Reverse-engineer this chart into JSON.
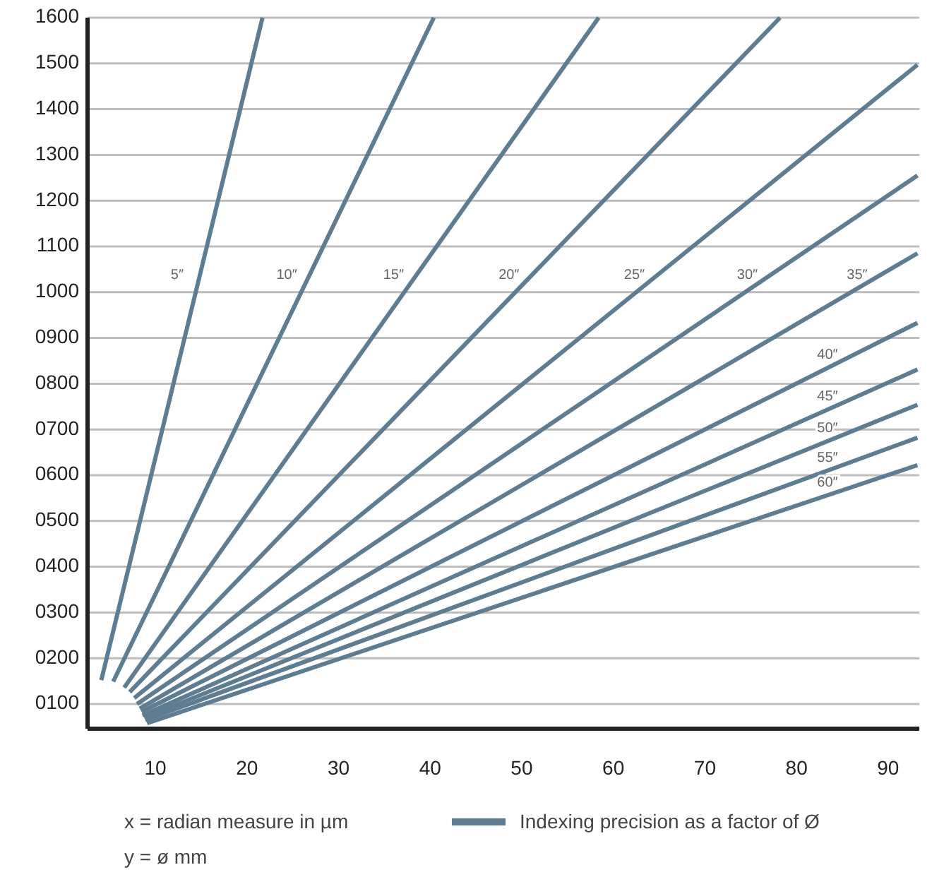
{
  "chart_data": {
    "type": "line",
    "xlabel": "x = radian measure in µm",
    "legend_title": "Indexing precision as a factor of Ø",
    "grid": "y",
    "marker": "none",
    "line_style": "solid",
    "xlim": [
      2.6,
      93.4
    ],
    "ylim": [
      46,
      1600
    ],
    "xticks": [
      10,
      20,
      30,
      40,
      50,
      60,
      70,
      80,
      90
    ],
    "yticks": [
      {
        "value": 100,
        "label": "0100"
      },
      {
        "value": 200,
        "label": "0200"
      },
      {
        "value": 300,
        "label": "0300"
      },
      {
        "value": 400,
        "label": "0400"
      },
      {
        "value": 500,
        "label": "0500"
      },
      {
        "value": 600,
        "label": "0600"
      },
      {
        "value": 700,
        "label": "0700"
      },
      {
        "value": 800,
        "label": "0800"
      },
      {
        "value": 900,
        "label": "0900"
      },
      1000,
      1100,
      1200,
      1300,
      1400,
      1500,
      1600
    ],
    "series": [
      {
        "name": "5″",
        "color": "#5f7d92",
        "x": [
          4.1,
          21.7
        ],
        "values": [
          152,
          1600
        ]
      },
      {
        "name": "10″",
        "color": "#5f7d92",
        "x": [
          5.4,
          40.4
        ],
        "values": [
          149,
          1600
        ]
      },
      {
        "name": "15″",
        "color": "#5f7d92",
        "x": [
          6.6,
          58.4
        ],
        "values": [
          136,
          1600
        ]
      },
      {
        "name": "20″",
        "color": "#5f7d92",
        "x": [
          7.2,
          78.2
        ],
        "values": [
          126,
          1600
        ]
      },
      {
        "name": "25″",
        "color": "#5f7d92",
        "x": [
          7.7,
          93.2
        ],
        "values": [
          113,
          1497
        ]
      },
      {
        "name": "30″",
        "color": "#5f7d92",
        "x": [
          8.0,
          93.2
        ],
        "values": [
          100,
          1255
        ]
      },
      {
        "name": "35″",
        "color": "#5f7d92",
        "x": [
          8.3,
          93.2
        ],
        "values": [
          90,
          1085
        ]
      },
      {
        "name": "40″",
        "color": "#5f7d92",
        "x": [
          8.5,
          93.2
        ],
        "values": [
          83,
          933
        ]
      },
      {
        "name": "45″",
        "color": "#5f7d92",
        "x": [
          8.6,
          93.2
        ],
        "values": [
          75,
          831
        ]
      },
      {
        "name": "50″",
        "color": "#5f7d92",
        "x": [
          8.8,
          93.2
        ],
        "values": [
          70,
          754
        ]
      },
      {
        "name": "55″",
        "color": "#5f7d92",
        "x": [
          8.9,
          93.2
        ],
        "values": [
          65,
          682
        ]
      },
      {
        "name": "60″",
        "color": "#5f7d92",
        "x": [
          9.1,
          93.2
        ],
        "values": [
          58,
          622
        ]
      }
    ],
    "annotations": [
      "y = ø mm"
    ]
  }
}
